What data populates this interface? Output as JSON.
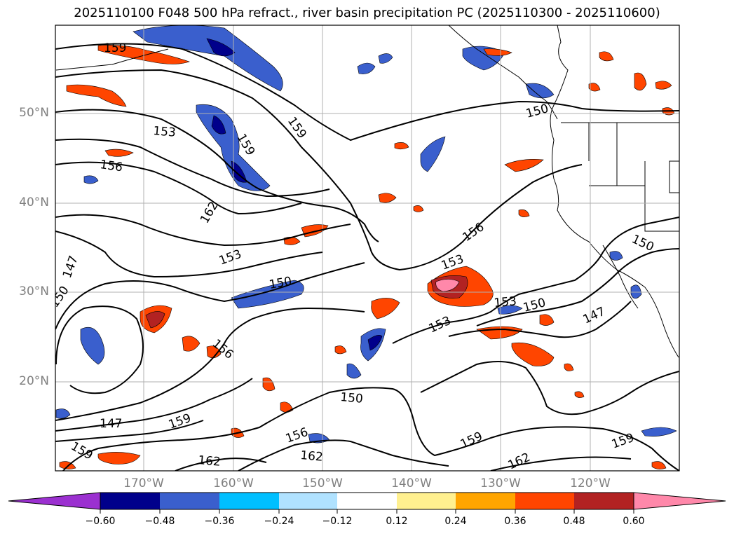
{
  "title": "2025110100 F048 500 hPa refract., river basin precipitation PC (2025110300 - 2025110600)",
  "map": {
    "lat_labels": [
      "50°N",
      "40°N",
      "30°N",
      "20°N"
    ],
    "lon_labels": [
      "170°W",
      "160°W",
      "150°W",
      "140°W",
      "130°W",
      "120°W"
    ],
    "gridlines": true,
    "contour_labels": [
      "159",
      "153",
      "159",
      "156",
      "162",
      "159",
      "156",
      "153",
      "153",
      "150",
      "150",
      "153",
      "153",
      "150",
      "147",
      "150",
      "147",
      "156",
      "150",
      "147",
      "159",
      "159",
      "156",
      "162",
      "162",
      "159",
      "162",
      "159",
      "150"
    ]
  },
  "colorbar": {
    "ticks": [
      "−0.60",
      "−0.48",
      "−0.36",
      "−0.24",
      "−0.12",
      "0.12",
      "0.24",
      "0.36",
      "0.48",
      "0.60"
    ],
    "colors": [
      "#9b30d0",
      "#00008b",
      "#3a5fcd",
      "#00bfff",
      "#b0e2ff",
      "#ffffff",
      "#fff08f",
      "#ffa500",
      "#ff4500",
      "#b22222",
      "#ff88aa",
      "#ff88aa"
    ],
    "extend": "both"
  }
}
